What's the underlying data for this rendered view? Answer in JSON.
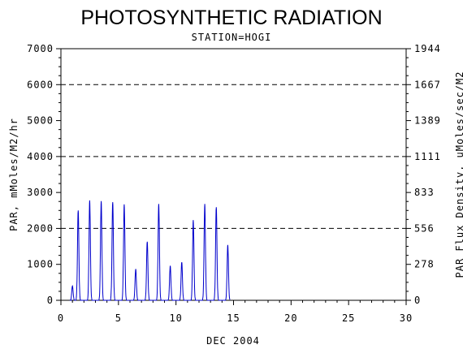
{
  "chart_data": {
    "type": "line",
    "title": "PHOTOSYNTHETIC RADIATION",
    "subtitle": "STATION=HOGI",
    "xlabel": "DEC 2004",
    "ylabel": "PAR, mMoles/M2/hr",
    "ylabel_right": "PAR Flux Density, uMoles/sec/M2",
    "xlim": [
      0,
      30
    ],
    "ylim": [
      0,
      7000
    ],
    "x_ticks": [
      0,
      5,
      10,
      15,
      20,
      25,
      30
    ],
    "y_ticks": [
      0,
      1000,
      2000,
      3000,
      4000,
      5000,
      6000,
      7000
    ],
    "y_ticks_right": [
      "0",
      "278",
      "556",
      "833",
      "1111",
      "1389",
      "1667",
      "1944"
    ],
    "grid": "dashed horizontal lines at 2000, 4000, 6000",
    "series_color": "#0000cc",
    "daily_peaks": [
      {
        "day": 1,
        "peak": 400
      },
      {
        "day": 1.5,
        "peak": 2500
      },
      {
        "day": 2.5,
        "peak": 2780
      },
      {
        "day": 3.5,
        "peak": 2760
      },
      {
        "day": 4.5,
        "peak": 2730
      },
      {
        "day": 5.5,
        "peak": 2670
      },
      {
        "day": 6.5,
        "peak": 870
      },
      {
        "day": 7.5,
        "peak": 1630
      },
      {
        "day": 8.5,
        "peak": 2680
      },
      {
        "day": 9.5,
        "peak": 960
      },
      {
        "day": 10.5,
        "peak": 1060
      },
      {
        "day": 11.5,
        "peak": 2230
      },
      {
        "day": 12.5,
        "peak": 2680
      },
      {
        "day": 13.5,
        "peak": 2590
      },
      {
        "day": 14.5,
        "peak": 1540
      }
    ]
  }
}
